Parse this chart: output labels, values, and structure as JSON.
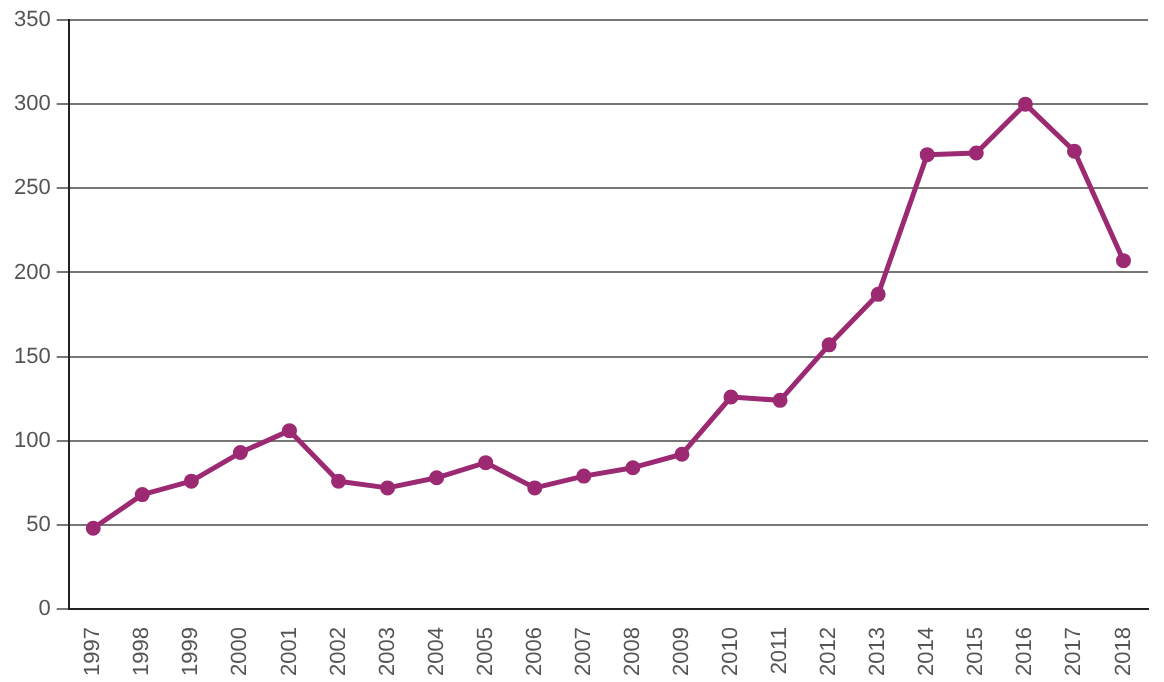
{
  "chart_data": {
    "type": "line",
    "categories": [
      "1997",
      "1998",
      "1999",
      "2000",
      "2001",
      "2002",
      "2003",
      "2004",
      "2005",
      "2006",
      "2007",
      "2008",
      "2009",
      "2010",
      "2011",
      "2012",
      "2013",
      "2014",
      "2015",
      "2016",
      "2017",
      "2018"
    ],
    "series": [
      {
        "color": "#9b2a72",
        "values": [
          48,
          68,
          76,
          93,
          106,
          76,
          72,
          78,
          87,
          72,
          79,
          84,
          92,
          126,
          124,
          157,
          187,
          270,
          271,
          300,
          272,
          207
        ]
      }
    ],
    "ylim": [
      0,
      350
    ],
    "yticks": [
      0,
      50,
      100,
      150,
      200,
      250,
      300,
      350
    ],
    "grid": "y",
    "legend": false,
    "marker": "circle",
    "line_style": "solid"
  }
}
